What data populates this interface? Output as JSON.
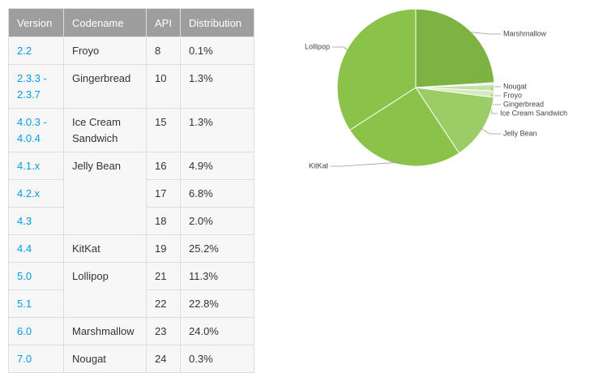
{
  "table": {
    "header": [
      "Version",
      "Codename",
      "API",
      "Distribution"
    ],
    "groups": [
      {
        "codename": "Froyo",
        "releases": [
          {
            "version": "2.2",
            "api": 8,
            "distribution": "0.1%"
          }
        ]
      },
      {
        "codename": "Gingerbread",
        "releases": [
          {
            "version": "2.3.3 - 2.3.7",
            "api": 10,
            "distribution": "1.3%"
          }
        ]
      },
      {
        "codename": "Ice Cream Sandwich",
        "releases": [
          {
            "version": "4.0.3 - 4.0.4",
            "api": 15,
            "distribution": "1.3%"
          }
        ]
      },
      {
        "codename": "Jelly Bean",
        "releases": [
          {
            "version": "4.1.x",
            "api": 16,
            "distribution": "4.9%"
          },
          {
            "version": "4.2.x",
            "api": 17,
            "distribution": "6.8%"
          },
          {
            "version": "4.3",
            "api": 18,
            "distribution": "2.0%"
          }
        ]
      },
      {
        "codename": "KitKat",
        "releases": [
          {
            "version": "4.4",
            "api": 19,
            "distribution": "25.2%"
          }
        ]
      },
      {
        "codename": "Lollipop",
        "releases": [
          {
            "version": "5.0",
            "api": 21,
            "distribution": "11.3%"
          },
          {
            "version": "5.1",
            "api": 22,
            "distribution": "22.8%"
          }
        ]
      },
      {
        "codename": "Marshmallow",
        "releases": [
          {
            "version": "6.0",
            "api": 23,
            "distribution": "24.0%"
          }
        ]
      },
      {
        "codename": "Nougat",
        "releases": [
          {
            "version": "7.0",
            "api": 24,
            "distribution": "0.3%"
          }
        ]
      }
    ]
  },
  "chart_data": {
    "type": "pie",
    "categories": [
      "Marshmallow",
      "Nougat",
      "Froyo",
      "Gingerbread",
      "Ice Cream Sandwich",
      "Jelly Bean",
      "KitKat",
      "Lollipop"
    ],
    "values": [
      24.0,
      0.3,
      0.1,
      1.3,
      1.3,
      13.7,
      25.2,
      34.1
    ],
    "colors": [
      "#7cb342",
      "#dcedc8",
      "#e6f2d6",
      "#c5e1a5",
      "#d4e9bd",
      "#9ccc65",
      "#8bc34a",
      "#8bc34a"
    ]
  }
}
